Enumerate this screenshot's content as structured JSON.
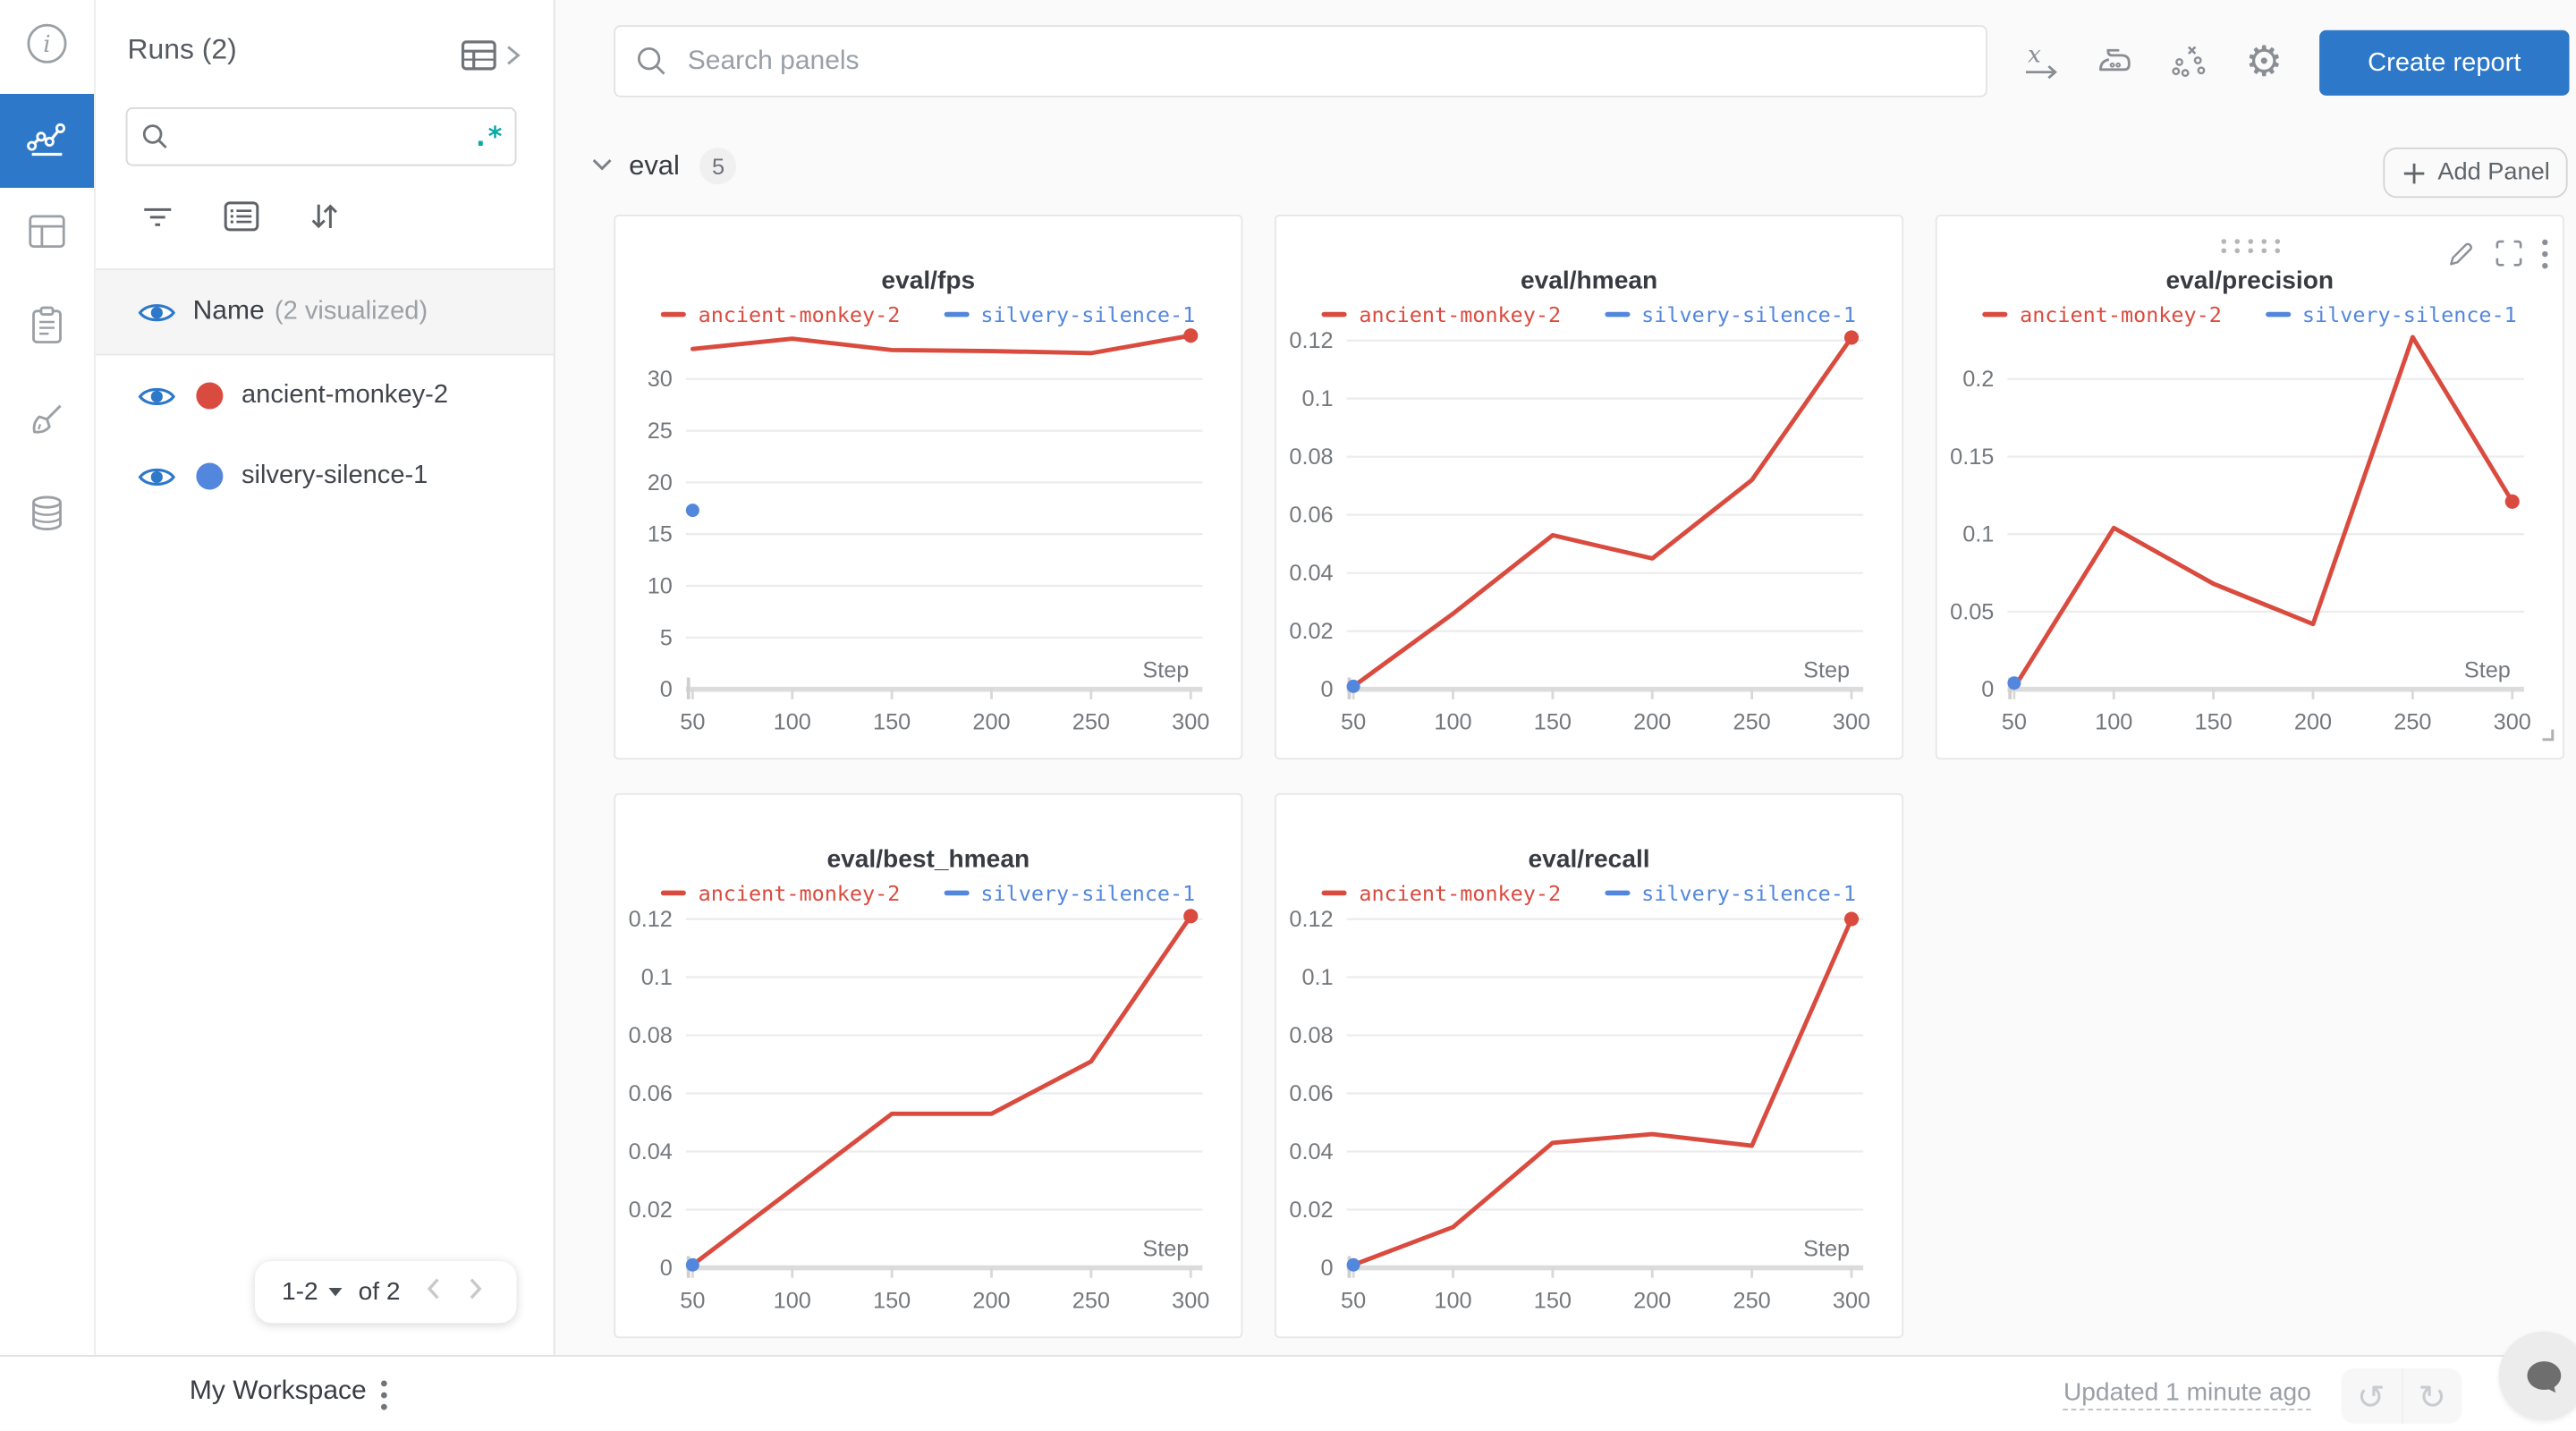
{
  "colors": {
    "accent": "#2d78c9",
    "run_red": "#da4b3f",
    "run_blue": "#5387dd",
    "regex_teal": "#0ba8a8"
  },
  "rail": {
    "items": [
      {
        "icon": "info"
      },
      {
        "icon": "line-chart",
        "active": true
      },
      {
        "icon": "table"
      },
      {
        "icon": "clipboard"
      },
      {
        "icon": "broom"
      },
      {
        "icon": "database"
      }
    ]
  },
  "runs_panel": {
    "title": "Runs (2)",
    "search_placeholder": "",
    "regex_toggle": ".*",
    "header_row": {
      "label": "Name",
      "sublabel": "(2 visualized)"
    },
    "runs": [
      {
        "name": "ancient-monkey-2",
        "color": "#da4b3f",
        "visible": true
      },
      {
        "name": "silvery-silence-1",
        "color": "#5387dd",
        "visible": true
      }
    ],
    "pagination": {
      "range": "1-2",
      "of": "of 2"
    }
  },
  "topbar": {
    "search_placeholder": "Search panels",
    "create_report": "Create report"
  },
  "section": {
    "title": "eval",
    "count": "5",
    "add_panel": "Add Panel"
  },
  "chart_data": [
    {
      "type": "line",
      "title": "eval/fps",
      "xlabel": "Step",
      "x": [
        50,
        100,
        150,
        200,
        250,
        300
      ],
      "yticks": [
        0,
        5,
        10,
        15,
        20,
        25,
        30
      ],
      "ylim": [
        0,
        36.0
      ],
      "grid": true,
      "legend_position": "top",
      "series": [
        {
          "name": "ancient-monkey-2",
          "color": "#da4b3f",
          "values": [
            32.9,
            33.9,
            32.8,
            32.7,
            32.5,
            34.2
          ]
        },
        {
          "name": "silvery-silence-1",
          "color": "#5387dd",
          "x": [
            50
          ],
          "values": [
            17.3
          ],
          "point_only": true
        }
      ]
    },
    {
      "type": "line",
      "title": "eval/hmean",
      "xlabel": "Step",
      "x": [
        50,
        100,
        150,
        200,
        250,
        300
      ],
      "yticks": [
        0,
        0.02,
        0.04,
        0.06,
        0.08,
        0.1,
        0.12
      ],
      "ylim": [
        0,
        0.1281
      ],
      "grid": true,
      "legend_position": "top",
      "series": [
        {
          "name": "ancient-monkey-2",
          "color": "#da4b3f",
          "values": [
            0.001,
            0.026,
            0.053,
            0.045,
            0.072,
            0.121
          ]
        },
        {
          "name": "silvery-silence-1",
          "color": "#5387dd",
          "x": [
            50
          ],
          "values": [
            0.001
          ],
          "point_only": true
        }
      ]
    },
    {
      "type": "line",
      "title": "eval/precision",
      "xlabel": "Step",
      "x": [
        50,
        100,
        150,
        200,
        250,
        300
      ],
      "yticks": [
        0,
        0.05,
        0.1,
        0.15,
        0.2
      ],
      "ylim": [
        0,
        0.24
      ],
      "grid": true,
      "legend_position": "top",
      "series": [
        {
          "name": "ancient-monkey-2",
          "color": "#da4b3f",
          "values": [
            0.001,
            0.104,
            0.068,
            0.042,
            0.227,
            0.121
          ]
        },
        {
          "name": "silvery-silence-1",
          "color": "#5387dd",
          "x": [
            50
          ],
          "values": [
            0.004
          ],
          "point_only": true
        }
      ]
    },
    {
      "type": "line",
      "title": "eval/best_hmean",
      "xlabel": "Step",
      "x": [
        50,
        100,
        150,
        200,
        250,
        300
      ],
      "yticks": [
        0,
        0.02,
        0.04,
        0.06,
        0.08,
        0.1,
        0.12
      ],
      "ylim": [
        0,
        0.1281
      ],
      "grid": true,
      "legend_position": "top",
      "series": [
        {
          "name": "ancient-monkey-2",
          "color": "#da4b3f",
          "values": [
            0.001,
            0.027,
            0.053,
            0.053,
            0.071,
            0.121
          ]
        },
        {
          "name": "silvery-silence-1",
          "color": "#5387dd",
          "x": [
            50
          ],
          "values": [
            0.001
          ],
          "point_only": true
        }
      ]
    },
    {
      "type": "line",
      "title": "eval/recall",
      "xlabel": "Step",
      "x": [
        50,
        100,
        150,
        200,
        250,
        300
      ],
      "yticks": [
        0,
        0.02,
        0.04,
        0.06,
        0.08,
        0.1,
        0.12
      ],
      "ylim": [
        0,
        0.1281
      ],
      "grid": true,
      "legend_position": "top",
      "series": [
        {
          "name": "ancient-monkey-2",
          "color": "#da4b3f",
          "values": [
            0.001,
            0.014,
            0.043,
            0.046,
            0.042,
            0.12
          ]
        },
        {
          "name": "silvery-silence-1",
          "color": "#5387dd",
          "x": [
            50
          ],
          "values": [
            0.001
          ],
          "point_only": true
        }
      ]
    }
  ],
  "ui_state": {
    "hovered_panel": "eval/precision"
  },
  "bottom_bar": {
    "workspace": "My Workspace",
    "updated": "Updated 1 minute ago"
  }
}
